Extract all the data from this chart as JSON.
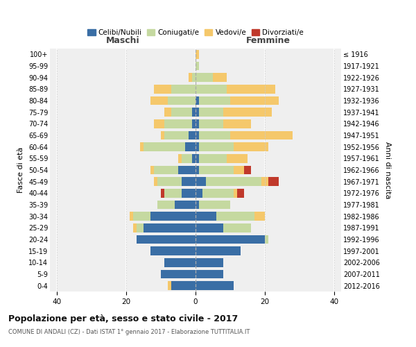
{
  "age_groups": [
    "100+",
    "95-99",
    "90-94",
    "85-89",
    "80-84",
    "75-79",
    "70-74",
    "65-69",
    "60-64",
    "55-59",
    "50-54",
    "45-49",
    "40-44",
    "35-39",
    "30-34",
    "25-29",
    "20-24",
    "15-19",
    "10-14",
    "5-9",
    "0-4"
  ],
  "birth_years": [
    "≤ 1916",
    "1917-1921",
    "1922-1926",
    "1927-1931",
    "1932-1936",
    "1937-1941",
    "1942-1946",
    "1947-1951",
    "1952-1956",
    "1957-1961",
    "1962-1966",
    "1967-1971",
    "1972-1976",
    "1977-1981",
    "1982-1986",
    "1987-1991",
    "1992-1996",
    "1997-2001",
    "2002-2006",
    "2007-2011",
    "2012-2016"
  ],
  "maschi_celibi": [
    0,
    0,
    0,
    0,
    0,
    1,
    1,
    2,
    3,
    1,
    5,
    4,
    4,
    6,
    13,
    15,
    17,
    13,
    9,
    10,
    7
  ],
  "maschi_coniugati": [
    0,
    0,
    1,
    7,
    8,
    6,
    8,
    7,
    12,
    3,
    7,
    7,
    5,
    5,
    5,
    2,
    0,
    0,
    0,
    0,
    0
  ],
  "maschi_vedovi": [
    0,
    0,
    1,
    5,
    5,
    2,
    3,
    1,
    1,
    1,
    1,
    1,
    0,
    0,
    1,
    1,
    0,
    0,
    0,
    0,
    1
  ],
  "maschi_divorziati": [
    0,
    0,
    0,
    0,
    0,
    0,
    0,
    0,
    0,
    0,
    0,
    0,
    1,
    0,
    0,
    0,
    0,
    0,
    0,
    0,
    0
  ],
  "femmine_nubili": [
    0,
    0,
    0,
    0,
    1,
    1,
    1,
    1,
    1,
    1,
    1,
    3,
    2,
    1,
    6,
    8,
    20,
    13,
    8,
    8,
    11
  ],
  "femmine_coniugate": [
    0,
    1,
    5,
    9,
    9,
    7,
    7,
    9,
    10,
    8,
    10,
    16,
    9,
    9,
    11,
    8,
    1,
    0,
    0,
    0,
    0
  ],
  "femmine_vedove": [
    1,
    0,
    4,
    14,
    14,
    14,
    8,
    18,
    10,
    6,
    3,
    2,
    1,
    0,
    3,
    0,
    0,
    0,
    0,
    0,
    0
  ],
  "femmine_divorziate": [
    0,
    0,
    0,
    0,
    0,
    0,
    0,
    0,
    0,
    0,
    2,
    3,
    2,
    0,
    0,
    0,
    0,
    0,
    0,
    0,
    0
  ],
  "color_celibi": "#3A6EA5",
  "color_coniugati": "#C5D9A0",
  "color_vedovi": "#F5C86B",
  "color_divorziati": "#C0392B",
  "xlim_min": -42,
  "xlim_max": 42,
  "xticks": [
    -40,
    -20,
    0,
    20,
    40
  ],
  "xticklabels": [
    "40",
    "20",
    "0",
    "20",
    "40"
  ],
  "title": "Popolazione per età, sesso e stato civile - 2017",
  "subtitle": "COMUNE DI ANDALI (CZ) - Dati ISTAT 1° gennaio 2017 - Elaborazione TUTTITALIA.IT",
  "ylabel_left": "Fasce di età",
  "ylabel_right": "Anni di nascita",
  "maschi_label": "Maschi",
  "femmine_label": "Femmine",
  "legend_labels": [
    "Celibi/Nubili",
    "Coniugati/e",
    "Vedovi/e",
    "Divorziati/e"
  ],
  "bg_color": "#ffffff",
  "plot_bg": "#efefef",
  "bar_height": 0.75
}
